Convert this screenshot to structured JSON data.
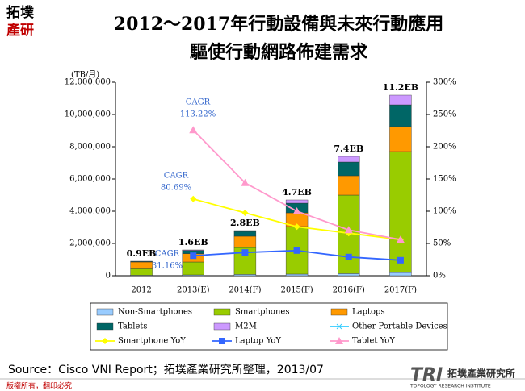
{
  "header": {
    "logo": [
      "拓墣",
      "產研"
    ],
    "title": [
      "2012～2017年行動設備與未來行動應用",
      "驅使行動網路佈建需求"
    ]
  },
  "chart_data": {
    "type": "bar",
    "stacked": true,
    "y_unit": "(TB/月)",
    "categories": [
      "2012",
      "2013(E)",
      "2014(F)",
      "2015(F)",
      "2016(F)",
      "2017(F)"
    ],
    "bar_labels": [
      "0.9EB",
      "1.6EB",
      "2.8EB",
      "4.7EB",
      "7.4EB",
      "11.2EB"
    ],
    "series": [
      {
        "name": "Non-Smartphones",
        "color": "#99ccff",
        "values": [
          30000,
          50000,
          80000,
          100000,
          130000,
          200000
        ]
      },
      {
        "name": "Smartphones",
        "color": "#99cc00",
        "values": [
          400000,
          800000,
          1670000,
          2950000,
          4870000,
          7500000
        ]
      },
      {
        "name": "Laptops",
        "color": "#ff9900",
        "values": [
          420000,
          520000,
          700000,
          850000,
          1200000,
          1550000
        ]
      },
      {
        "name": "Tablets",
        "color": "#006666",
        "values": [
          40000,
          190000,
          300000,
          600000,
          850000,
          1350000
        ]
      },
      {
        "name": "M2M",
        "color": "#cc99ff",
        "values": [
          10000,
          40000,
          50000,
          200000,
          350000,
          600000
        ]
      },
      {
        "name": "Other Portable Devices",
        "color": "#33ccff",
        "type": "line",
        "marker": "x",
        "values": [
          null,
          null,
          null,
          null,
          null,
          null
        ]
      },
      {
        "name": "Smartphone YoY",
        "color": "#ffff00",
        "type": "line",
        "marker": "diamond",
        "axis": "y2",
        "values": [
          null,
          119,
          97.5,
          76,
          66,
          56
        ]
      },
      {
        "name": "Laptop YoY",
        "color": "#3366ff",
        "type": "line",
        "marker": "square",
        "axis": "y2",
        "values": [
          null,
          31,
          36,
          39,
          29,
          24
        ]
      },
      {
        "name": "Tablet YoY",
        "color": "#ff99cc",
        "type": "line",
        "marker": "triangle",
        "axis": "y2",
        "values": [
          null,
          226,
          144,
          100,
          71,
          56
        ]
      }
    ],
    "ylim": [
      0,
      12000000
    ],
    "yticks": [
      0,
      {
        "value": 2000000,
        "label": "2,000,000"
      },
      {
        "value": 4000000,
        "label": "4,000,000"
      },
      {
        "value": 6000000,
        "label": "6,000,000"
      },
      {
        "value": 8000000,
        "label": "8,000,000"
      },
      {
        "value": 10000000,
        "label": "10,000,000"
      },
      {
        "value": 12000000,
        "label": "12,000,000"
      }
    ],
    "y2lim": [
      0,
      300
    ],
    "y2ticks": [
      {
        "value": 0,
        "label": "0%"
      },
      {
        "value": 50,
        "label": "50%"
      },
      {
        "value": 100,
        "label": "100%"
      },
      {
        "value": 150,
        "label": "150%"
      },
      {
        "value": 200,
        "label": "200%"
      },
      {
        "value": 250,
        "label": "250%"
      },
      {
        "value": 300,
        "label": "300%"
      }
    ],
    "annotations": [
      [
        "CAGR",
        "113.22%"
      ],
      [
        "CAGR",
        "80.69%"
      ],
      [
        "CAGR",
        "31.16%"
      ]
    ]
  },
  "footer": {
    "source": "Source：Cisco VNI Report；拓墣產業研究所整理，2013/07",
    "copyright": "版權所有，翻印必究",
    "org": "拓墣產業研究所",
    "org_en": "TOPOLOGY RESEARCH INSTITUTE"
  }
}
